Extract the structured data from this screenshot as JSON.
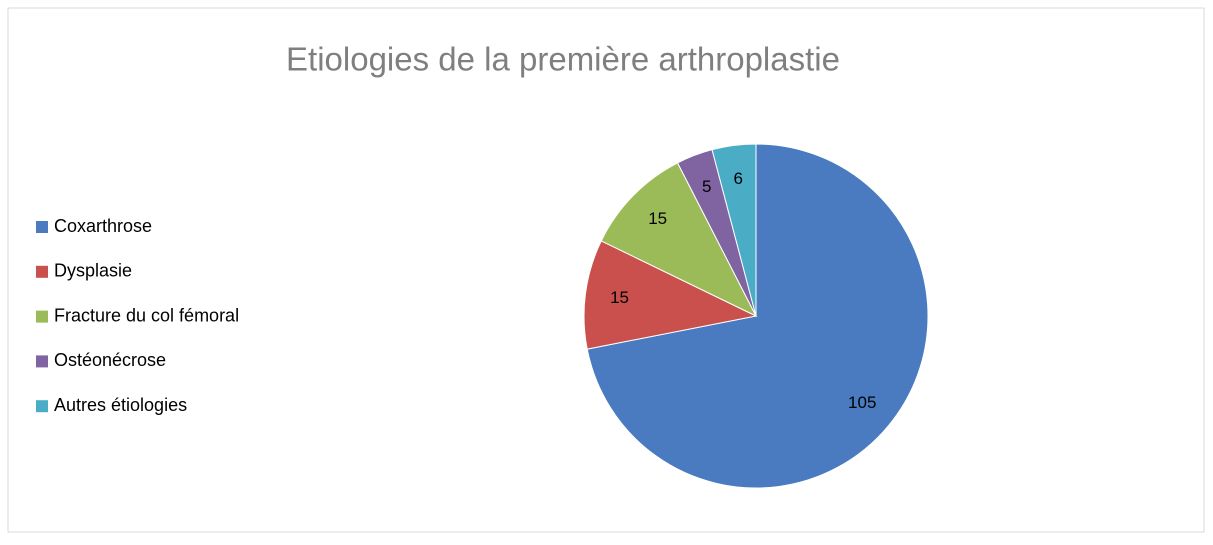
{
  "chart_data": {
    "type": "pie",
    "title": "Etiologies de la première arthroplastie",
    "categories": [
      "Coxarthrose",
      "Dysplasie",
      "Fracture du col fémoral",
      "Ostéonécrose",
      "Autres étiologies"
    ],
    "values": [
      105,
      15,
      15,
      5,
      6
    ],
    "colors": [
      "#4a7bc0",
      "#c9504d",
      "#9bbb59",
      "#8064a2",
      "#4bacc6"
    ],
    "legend": "left"
  }
}
